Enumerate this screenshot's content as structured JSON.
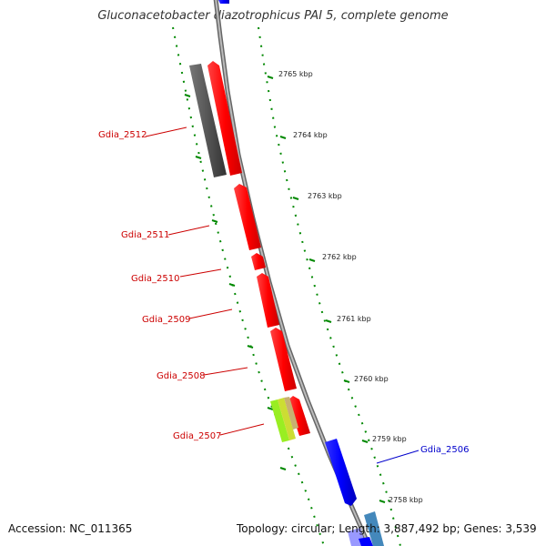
{
  "title": "Gluconacetobacter diazotrophicus PAI 5, complete genome",
  "ticks": [
    {
      "label": "2765 kbp"
    },
    {
      "label": "2764 kbp"
    },
    {
      "label": "2763 kbp"
    },
    {
      "label": "2762 kbp"
    },
    {
      "label": "2761 kbp"
    },
    {
      "label": "2760 kbp"
    },
    {
      "label": "2759 kbp"
    },
    {
      "label": "2758 kbp"
    }
  ],
  "genes": [
    {
      "label": "Gdia_2512",
      "color": "#cc0000"
    },
    {
      "label": "Gdia_2511",
      "color": "#cc0000"
    },
    {
      "label": "Gdia_2510",
      "color": "#cc0000"
    },
    {
      "label": "Gdia_2509",
      "color": "#cc0000"
    },
    {
      "label": "Gdia_2508",
      "color": "#cc0000"
    },
    {
      "label": "Gdia_2507",
      "color": "#cc0000"
    },
    {
      "label": "Gdia_2506",
      "color": "#0000cc"
    }
  ],
  "colors": {
    "forward_gene": "#ff0000",
    "reverse_gene": "#0000ff",
    "gray_feature": "#555555",
    "tick_green": "#008800",
    "backbone": "#888888"
  },
  "footer": {
    "accession_label": "Accession:",
    "accession": "NC_011365",
    "topology_label": "Topology:",
    "topology": "circular",
    "length_label": "Length:",
    "length": "3,887,492 bp",
    "genes_label": "Genes:",
    "genes": "3,539"
  }
}
